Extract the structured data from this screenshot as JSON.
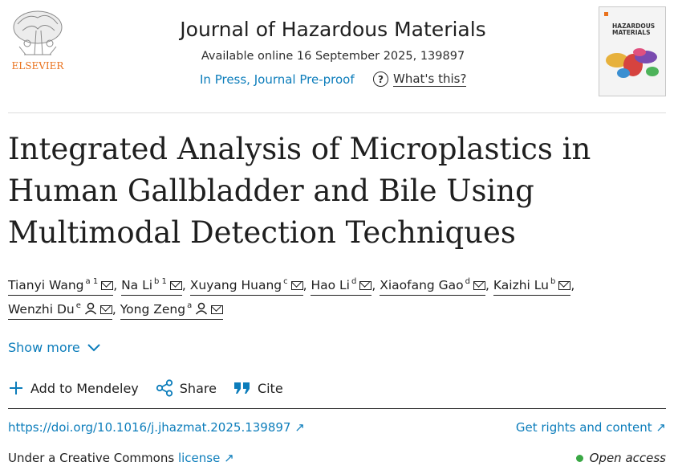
{
  "publisher": {
    "name": "ELSEVIER"
  },
  "journal": {
    "name": "Journal of Hazardous Materials",
    "availability": "Available online 16 September 2025, 139897",
    "status": "In Press, Journal Pre-proof",
    "whats_this": "What's this?",
    "cover_title_line1": "HAZARDOUS",
    "cover_title_line2": "MATERIALS"
  },
  "article": {
    "title_lines": [
      "Integrated Analysis of Microplastics in",
      "Human Gallbladder and Bile Using",
      "Multimodal Detection Techniques"
    ]
  },
  "authors": [
    {
      "name": "Tianyi Wang",
      "sup": "a 1"
    },
    {
      "name": "Na Li",
      "sup": "b 1"
    },
    {
      "name": "Xuyang Huang",
      "sup": "c"
    },
    {
      "name": "Hao Li",
      "sup": "d"
    },
    {
      "name": "Xiaofang Gao",
      "sup": "d"
    },
    {
      "name": "Kaizhi Lu",
      "sup": "b"
    },
    {
      "name": "Wenzhi Du",
      "sup": "e"
    },
    {
      "name": "Yong Zeng",
      "sup": "a"
    }
  ],
  "show_more": "Show more",
  "actions": {
    "mendeley": "Add to Mendeley",
    "share": "Share",
    "cite": "Cite"
  },
  "links": {
    "doi": "https://doi.org/10.1016/j.jhazmat.2025.139897",
    "rights": "Get rights and content",
    "license_prefix": "Under a Creative Commons",
    "license_link": "license",
    "open_access": "Open access"
  },
  "colors": {
    "link": "#0c7dbb",
    "brand_orange": "#e9711c",
    "open_access_dot": "#3aa845"
  }
}
